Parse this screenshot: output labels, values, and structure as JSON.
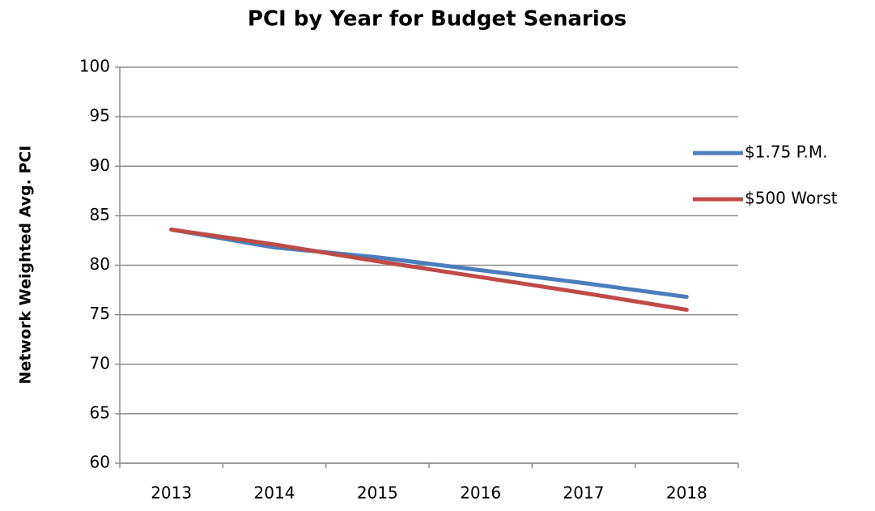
{
  "chart_data": {
    "type": "line",
    "title": "PCI by Year for Budget Senarios",
    "y_label": "Network Weighted Avg.  PCI",
    "categories": [
      "2013",
      "2014",
      "2015",
      "2016",
      "2017",
      "2018"
    ],
    "series": [
      {
        "name": "$1.75 P.M.",
        "color": "#4a7ebb",
        "values": [
          83.6,
          81.8,
          80.8,
          79.5,
          78.2,
          76.8
        ]
      },
      {
        "name": "$500 Worst",
        "color": "#be4b48",
        "values": [
          83.6,
          82.1,
          80.4,
          78.8,
          77.2,
          75.5
        ]
      }
    ],
    "ylim": [
      60,
      100
    ],
    "yticks": [
      60,
      65,
      70,
      75,
      80,
      85,
      90,
      95,
      100
    ],
    "grid": true,
    "legend": "right"
  }
}
